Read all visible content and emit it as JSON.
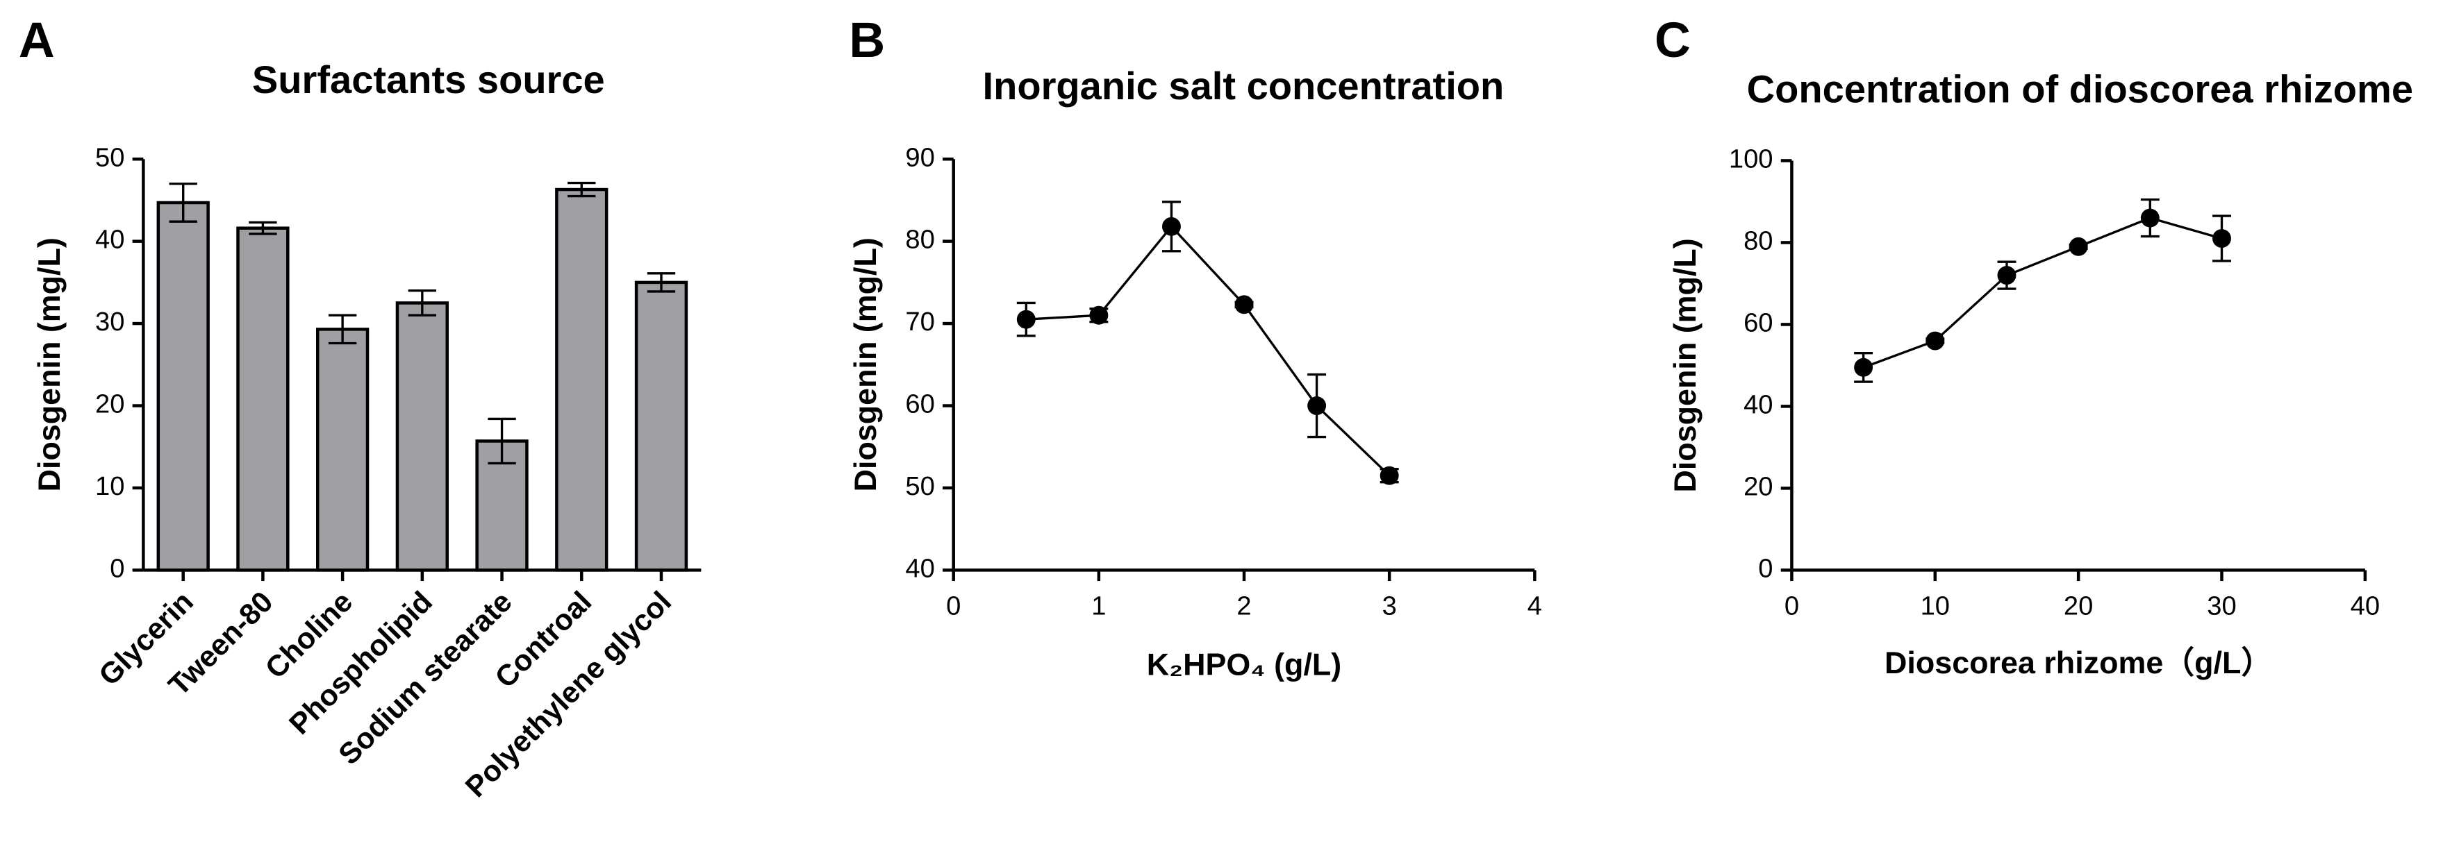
{
  "chart_data": [
    {
      "type": "bar",
      "panel_label": "A",
      "title": "Surfactants source",
      "y_label": "Diosgenin (mg/L)",
      "categories": [
        "Glycerin",
        "Tween-80",
        "Choline",
        "Phospholipid",
        "Sodium stearate",
        "Controal",
        "Polyethylene glycol"
      ],
      "values": [
        44.7,
        41.6,
        29.3,
        32.5,
        15.7,
        46.3,
        35.0
      ],
      "errors": [
        2.3,
        0.7,
        1.7,
        1.5,
        2.7,
        0.8,
        1.1
      ],
      "color": "#a0a0a4",
      "ylim": [
        0,
        50
      ],
      "yticks": [
        0,
        10,
        20,
        30,
        40,
        50
      ]
    },
    {
      "type": "line",
      "panel_label": "B",
      "title": "Inorganic salt concentration",
      "y_label": "Diosgenin (mg/L)",
      "x_label": "K₂HPO₄ (g/L)",
      "x": [
        0.5,
        1,
        1.5,
        2,
        2.5,
        3
      ],
      "values": [
        70.5,
        71.0,
        81.8,
        72.3,
        60.0,
        51.5
      ],
      "errors": [
        2.0,
        0.8,
        3.0,
        0.3,
        3.8,
        0.8
      ],
      "color": "#000000",
      "xlim": [
        0,
        4
      ],
      "xticks": [
        0,
        1,
        2,
        3,
        4
      ],
      "ylim": [
        40,
        90
      ],
      "yticks": [
        40,
        50,
        60,
        70,
        80,
        90
      ]
    },
    {
      "type": "line",
      "panel_label": "C",
      "title": "Concentration of dioscorea rhizome",
      "y_label": "Diosgenin (mg/L)",
      "x_label": "Dioscorea rhizome（g/L）",
      "x": [
        5,
        10,
        15,
        20,
        25,
        30
      ],
      "values": [
        49.5,
        56.0,
        72.0,
        79.0,
        86.0,
        81.0
      ],
      "errors": [
        3.5,
        0.5,
        3.3,
        0.5,
        4.5,
        5.5
      ],
      "color": "#000000",
      "xlim": [
        0,
        40
      ],
      "xticks": [
        0,
        10,
        20,
        30,
        40
      ],
      "ylim": [
        0,
        100
      ],
      "yticks": [
        0,
        20,
        40,
        60,
        80,
        100
      ]
    }
  ]
}
